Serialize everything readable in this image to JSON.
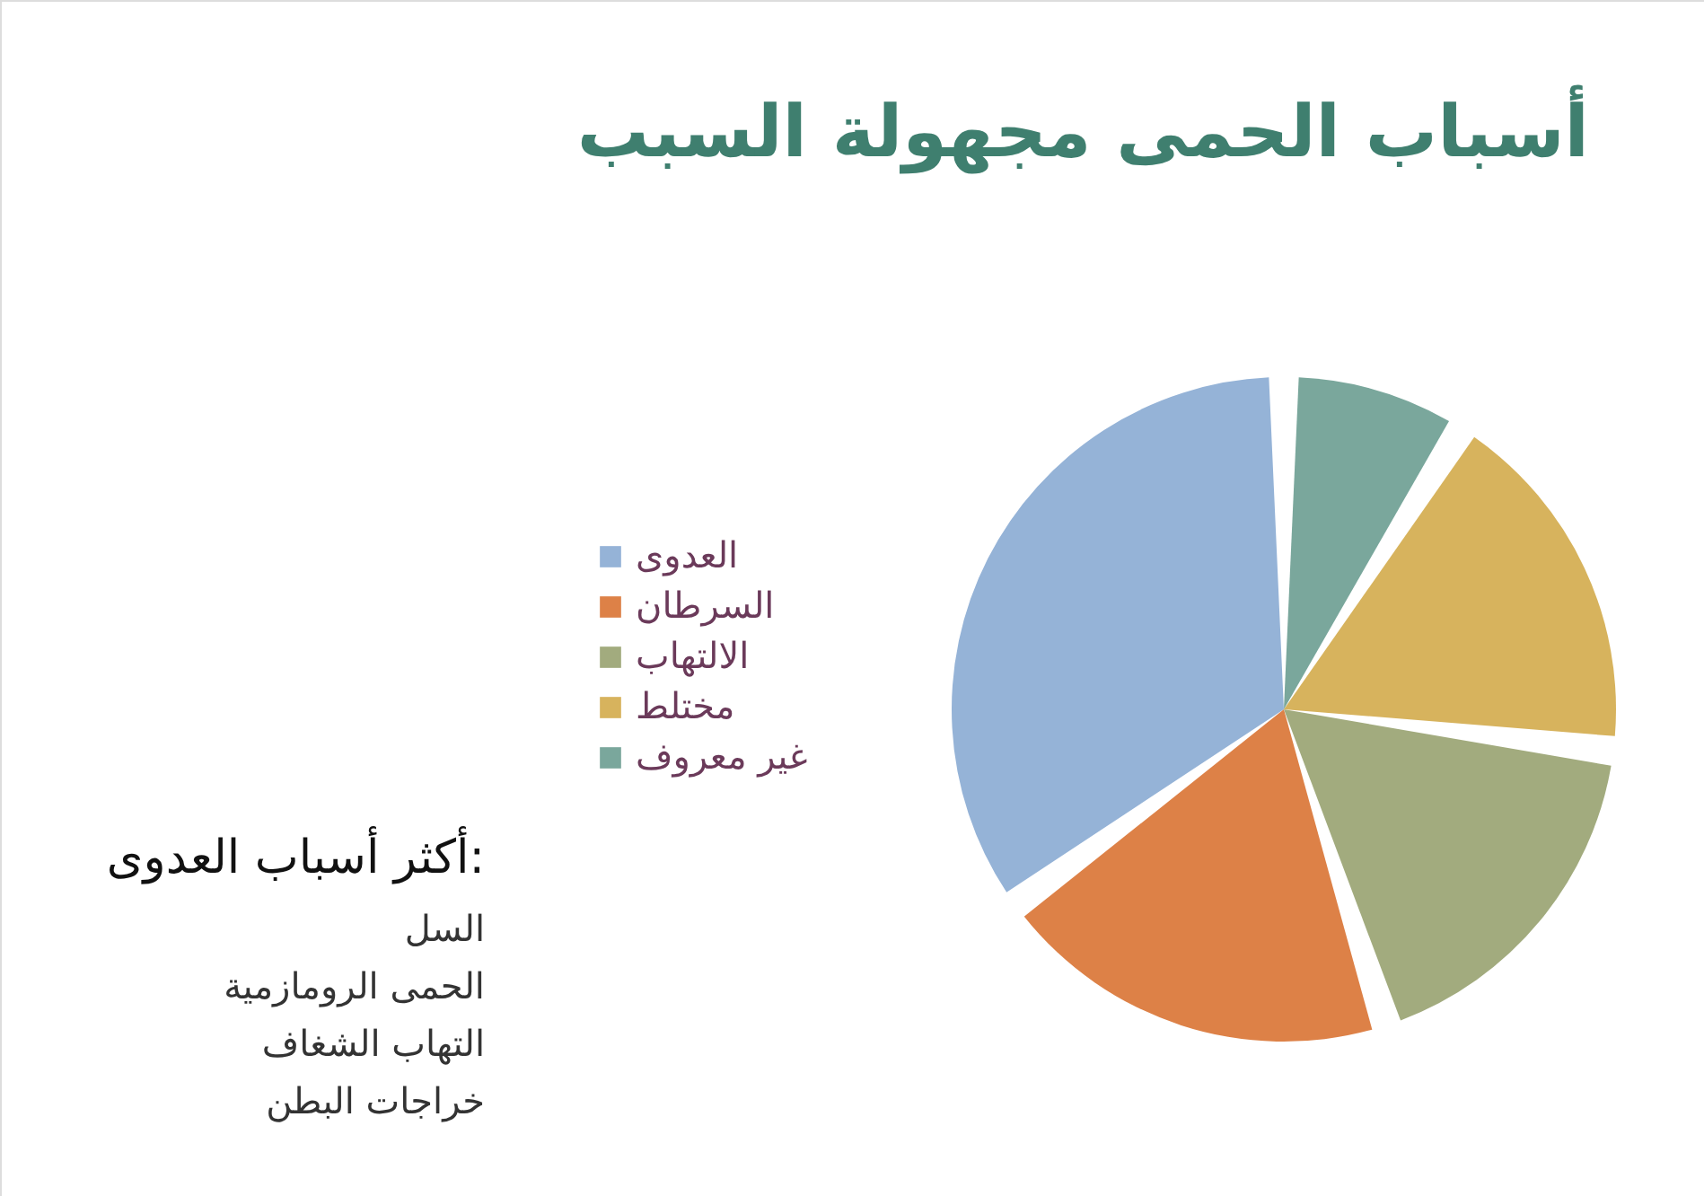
{
  "chart_data": {
    "type": "pie",
    "title": "أسباب الحمى مجهولة السبب",
    "categories": [
      "العدوى",
      "السرطان",
      "الالتهاب",
      "مختلط",
      "غير معروف"
    ],
    "values": [
      35,
      20,
      18,
      18,
      9
    ],
    "colors": [
      "#95b3d7",
      "#dd8147",
      "#a2ab7e",
      "#d7b35d",
      "#7aa79c"
    ],
    "legend": "left",
    "annotations": [
      "أكثر أسباب العدوى:",
      "السل",
      "الحمى الرومازمية",
      "التهاب الشغاف",
      "خراجات البطن"
    ]
  }
}
